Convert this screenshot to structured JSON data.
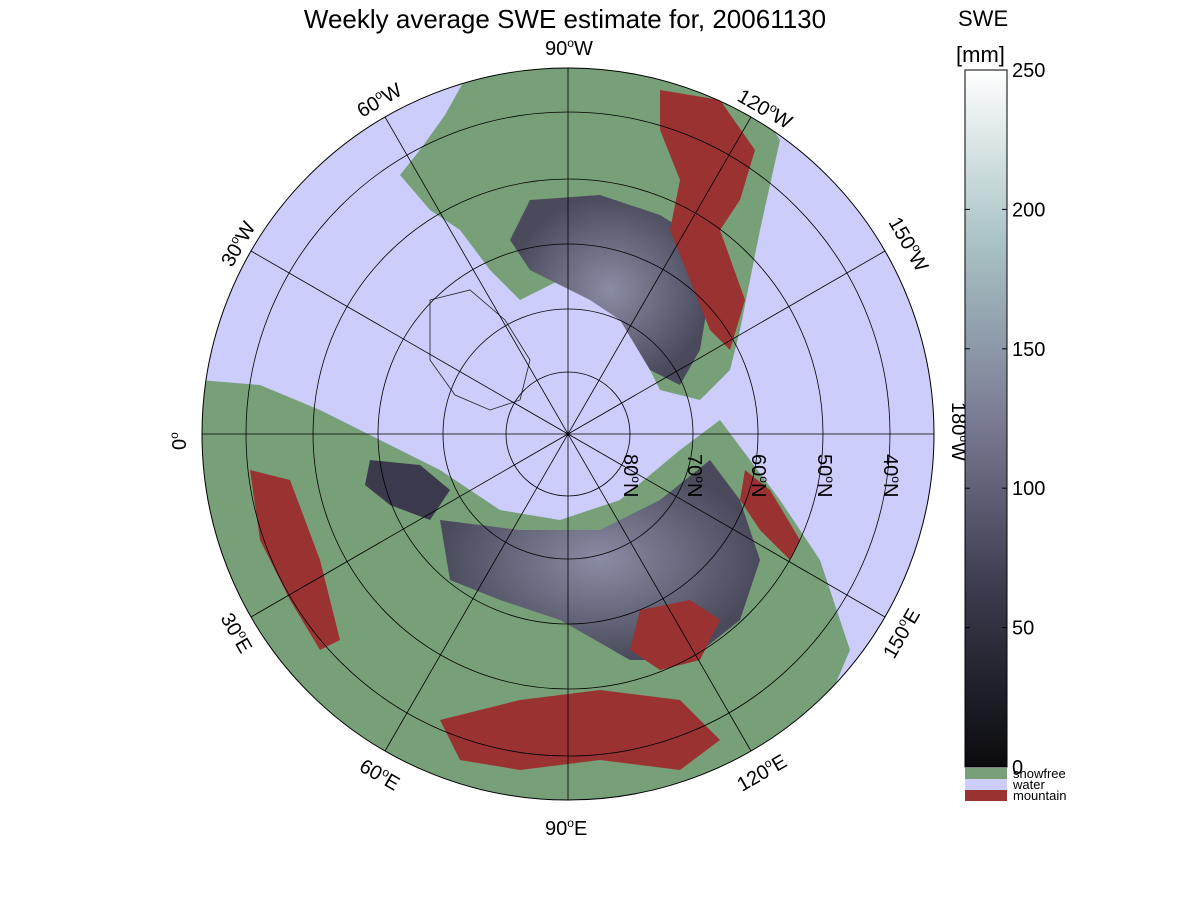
{
  "title": "Weekly average SWE estimate for, 20061130",
  "map": {
    "projection": "north polar stereographic",
    "longitude_labels": [
      {
        "text": "90",
        "suffix": "W"
      },
      {
        "text": "60",
        "suffix": "W"
      },
      {
        "text": "30",
        "suffix": "W"
      },
      {
        "text": "0",
        "suffix": ""
      },
      {
        "text": "120",
        "suffix": "W"
      },
      {
        "text": "150",
        "suffix": "W"
      },
      {
        "text": "180",
        "suffix": "W"
      },
      {
        "text": "150",
        "suffix": "E"
      },
      {
        "text": "120",
        "suffix": "E"
      },
      {
        "text": "90",
        "suffix": "E"
      },
      {
        "text": "60",
        "suffix": "E"
      },
      {
        "text": "30",
        "suffix": "E"
      }
    ],
    "latitude_labels": [
      {
        "text": "80",
        "suffix": "N"
      },
      {
        "text": "70",
        "suffix": "N"
      },
      {
        "text": "60",
        "suffix": "N"
      },
      {
        "text": "50",
        "suffix": "N"
      },
      {
        "text": "40",
        "suffix": "N"
      }
    ],
    "colors": {
      "water": "#cccdfb",
      "snowfree": "#78a078",
      "mountain": "#9a3232",
      "snow_low": "#2a2a34",
      "snow_mid": "#5e5e74"
    }
  },
  "colorbar": {
    "title_line1": "SWE",
    "title_line2": "[mm]",
    "ticks": [
      "0",
      "50",
      "100",
      "150",
      "200",
      "250"
    ],
    "min": 0,
    "max": 250,
    "legend": [
      {
        "label": "snowfree",
        "color": "#78a078"
      },
      {
        "label": "water",
        "color": "#cccdfb"
      },
      {
        "label": "mountain",
        "color": "#9a3232"
      }
    ]
  }
}
